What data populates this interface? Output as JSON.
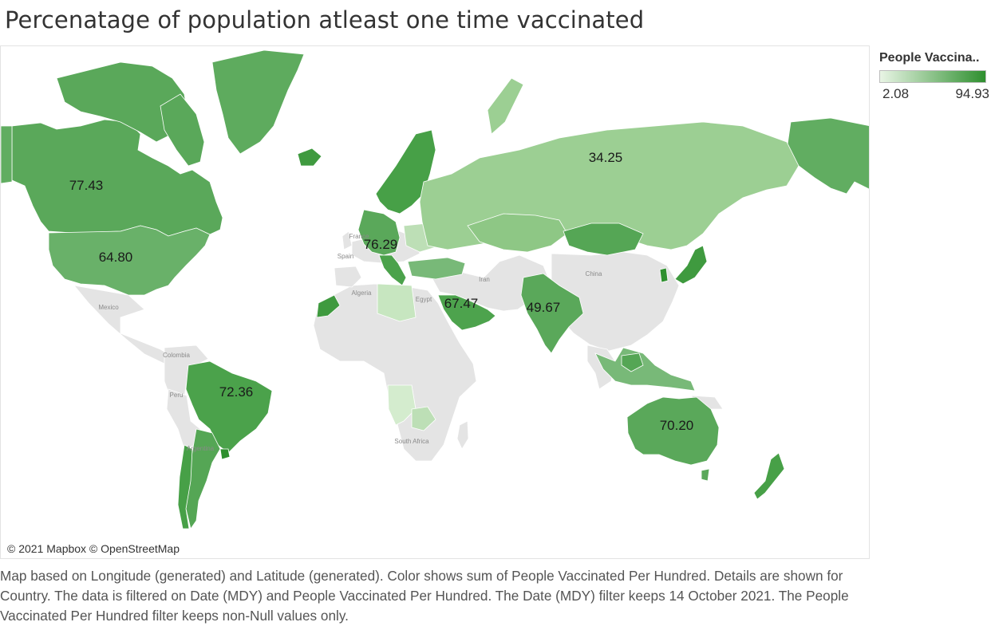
{
  "title": "Percenatage of population atleast one time vaccinated",
  "legend": {
    "title": "People Vaccina..",
    "min_label": "2.08",
    "max_label": "94.93",
    "color_low": "#e9f5e5",
    "color_high": "#2e8f2e",
    "no_data_color": "#e4e4e4"
  },
  "attribution": "© 2021 Mapbox © OpenStreetMap",
  "caption": "Map based on Longitude (generated) and Latitude (generated).  Color shows sum of People Vaccinated Per Hundred.  Details are shown for Country. The data is filtered on Date (MDY) and People Vaccinated Per Hundred. The Date (MDY) filter keeps 14 October 2021. The People Vaccinated Per Hundred filter keeps non-Null values only.",
  "map_place_names": [
    "Mexico",
    "Colombia",
    "Peru",
    "Argentina",
    "Algeria",
    "Egypt",
    "Iran",
    "China",
    "South Africa",
    "France",
    "Spain"
  ],
  "country_labels": [
    {
      "country": "Canada",
      "value": "77.43"
    },
    {
      "country": "United States",
      "value": "64.80"
    },
    {
      "country": "Italy",
      "value": "76.29"
    },
    {
      "country": "Saudi Arabia",
      "value": "67.47"
    },
    {
      "country": "India",
      "value": "49.67"
    },
    {
      "country": "Russia",
      "value": "34.25"
    },
    {
      "country": "Brazil",
      "value": "72.36"
    },
    {
      "country": "Australia",
      "value": "70.20"
    }
  ],
  "shaded_regions": [
    {
      "region": "Canada",
      "value": 77.43
    },
    {
      "region": "United States",
      "value": 64.8
    },
    {
      "region": "Alaska",
      "value": 64.8
    },
    {
      "region": "Greenland",
      "value": 70
    },
    {
      "region": "Iceland",
      "value": 78
    },
    {
      "region": "Scandinavia",
      "value": 76
    },
    {
      "region": "Western Europe",
      "value": 73
    },
    {
      "region": "Italy",
      "value": 76.29
    },
    {
      "region": "Eastern Europe",
      "value": 45
    },
    {
      "region": "Turkey",
      "value": 60
    },
    {
      "region": "Russia",
      "value": 34.25
    },
    {
      "region": "Kazakhstan",
      "value": 40
    },
    {
      "region": "Mongolia",
      "value": 66
    },
    {
      "region": "Saudi Arabia",
      "value": 67.47
    },
    {
      "region": "India",
      "value": 49.67
    },
    {
      "region": "Japan",
      "value": 76
    },
    {
      "region": "South Korea",
      "value": 80
    },
    {
      "region": "Southeast Asia",
      "value": 60
    },
    {
      "region": "Brazil",
      "value": 72.36
    },
    {
      "region": "Argentina",
      "value": 74
    },
    {
      "region": "Chile",
      "value": 80
    },
    {
      "region": "Australia",
      "value": 70.2
    },
    {
      "region": "New Zealand",
      "value": 76
    },
    {
      "region": "Libya",
      "value": 20
    },
    {
      "region": "Southern Africa",
      "value": 15
    }
  ]
}
